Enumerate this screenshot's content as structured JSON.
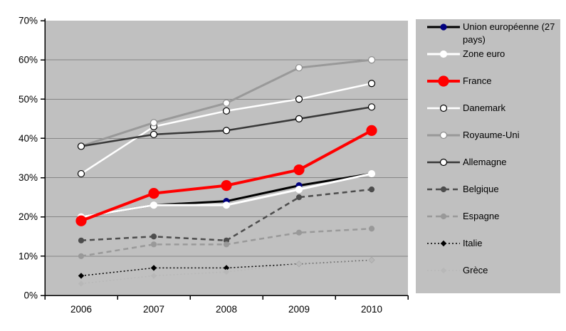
{
  "chart_data": {
    "type": "line",
    "title": "",
    "xlabel": "",
    "ylabel": "",
    "x_categories": [
      "2006",
      "2007",
      "2008",
      "2009",
      "2010"
    ],
    "y_ticks": [
      "70%",
      "60%",
      "50%",
      "40%",
      "30%",
      "20%",
      "10%",
      "0%"
    ],
    "ylim": [
      0,
      70
    ],
    "grid": "horizontal",
    "legend_position": "right",
    "plot_background": "#c0c0c0",
    "legend_background": "#c0c0c0",
    "gridline_color": "#868686",
    "axis_color": "#000000",
    "series": [
      {
        "name": "Union européenne (27 pays)",
        "values": [
          20,
          23,
          24,
          28,
          31
        ],
        "line_color": "#000000",
        "line_width": 3,
        "dash": "solid",
        "marker": {
          "shape": "circle",
          "fill": "#000080",
          "stroke": "#000080",
          "size": 4
        }
      },
      {
        "name": "Zone euro",
        "values": [
          20,
          23,
          23,
          27,
          31
        ],
        "line_color": "#ffffff",
        "line_width": 3,
        "dash": "solid",
        "marker": {
          "shape": "circle",
          "fill": "#ffffff",
          "stroke": "#ffffff",
          "size": 4.5
        }
      },
      {
        "name": "France",
        "values": [
          19,
          26,
          28,
          32,
          42
        ],
        "line_color": "#ff0000",
        "line_width": 4,
        "dash": "solid",
        "marker": {
          "shape": "circle",
          "fill": "#ff0000",
          "stroke": "#ff0000",
          "size": 7
        }
      },
      {
        "name": "Danemark",
        "values": [
          31,
          43,
          47,
          50,
          54
        ],
        "line_color": "#ffffff",
        "line_width": 2.5,
        "dash": "solid",
        "marker": {
          "shape": "circle",
          "fill": "#ffffff",
          "stroke": "#000000",
          "size": 4.5
        }
      },
      {
        "name": "Royaume-Uni",
        "values": [
          38,
          44,
          49,
          58,
          60
        ],
        "line_color": "#999999",
        "line_width": 3,
        "dash": "solid",
        "marker": {
          "shape": "circle",
          "fill": "#ffffff",
          "stroke": "#8c8c8c",
          "size": 4.5
        }
      },
      {
        "name": "Allemagne",
        "values": [
          38,
          41,
          42,
          45,
          48
        ],
        "line_color": "#383838",
        "line_width": 2.5,
        "dash": "solid",
        "marker": {
          "shape": "circle",
          "fill": "#ffffff",
          "stroke": "#000000",
          "size": 4.5
        }
      },
      {
        "name": "Belgique",
        "values": [
          14,
          15,
          14,
          25,
          27
        ],
        "line_color": "#4d4d4d",
        "line_width": 2.5,
        "dash": "dashed",
        "marker": {
          "shape": "circle",
          "fill": "#4d4d4d",
          "stroke": "#4d4d4d",
          "size": 3.5
        }
      },
      {
        "name": "Espagne",
        "values": [
          10,
          13,
          13,
          16,
          17
        ],
        "line_color": "#999999",
        "line_width": 2.5,
        "dash": "dashed",
        "marker": {
          "shape": "circle",
          "fill": "#999999",
          "stroke": "#999999",
          "size": 3.5
        }
      },
      {
        "name": "Italie",
        "values": [
          5,
          7,
          7,
          8,
          9
        ],
        "line_color": "#000000",
        "line_width": 1.5,
        "dash": "dotted",
        "marker": {
          "shape": "diamond",
          "fill": "#000000",
          "stroke": "#000000",
          "size": 3.5
        }
      },
      {
        "name": "Grèce",
        "values": [
          3,
          5,
          6,
          8,
          9
        ],
        "line_color": "#b8b8b8",
        "line_width": 1.5,
        "dash": "dotted",
        "marker": {
          "shape": "diamond",
          "fill": "#b8b8b8",
          "stroke": "#b8b8b8",
          "size": 3.5
        }
      }
    ]
  }
}
